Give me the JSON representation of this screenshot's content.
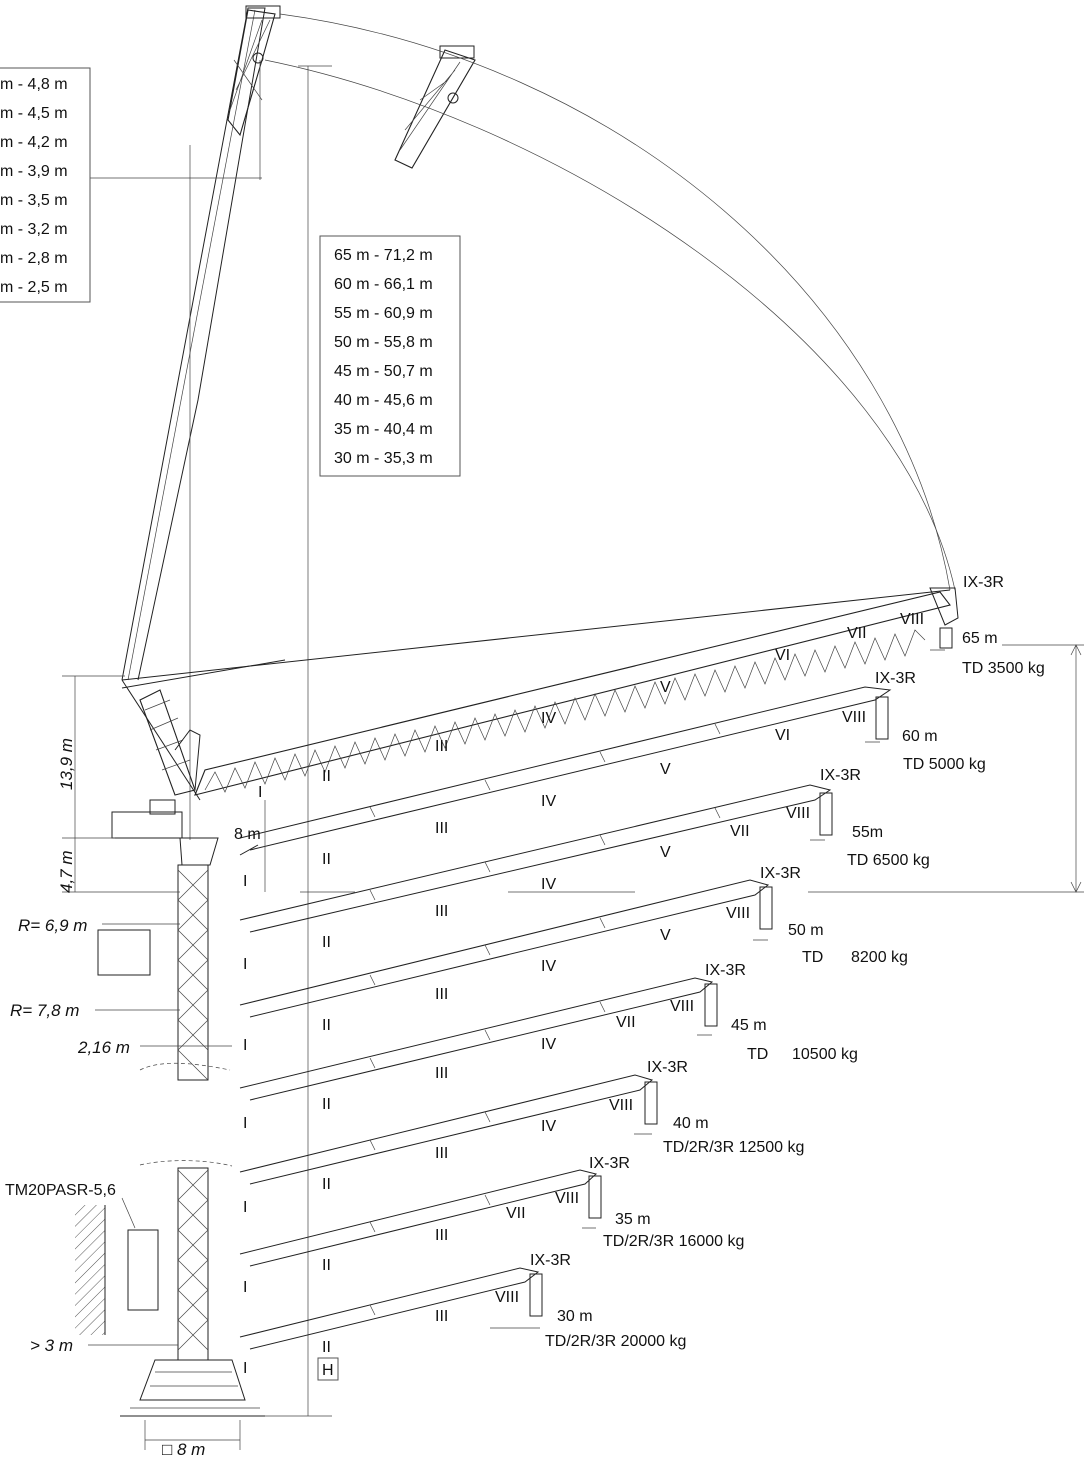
{
  "left_table": [
    "m - 4,8 m",
    "m - 4,5 m",
    "m - 4,2 m",
    "m - 3,9 m",
    "m - 3,5 m",
    "m - 3,2 m",
    "m - 2,8 m",
    "m - 2,5 m"
  ],
  "center_table": [
    "65 m - 71,2 m",
    "60 m - 66,1 m",
    "55 m - 60,9 m",
    "50 m - 55,8 m",
    "45 m - 50,7 m",
    "40 m - 45,6 m",
    "35 m - 40,4 m",
    "30 m - 35,3 m"
  ],
  "dimensions": {
    "d13_9": "13,9 m",
    "d4_7": "4,7 m",
    "d8": "8 m",
    "r69": "R= 6,9 m",
    "r78": "R= 7,8 m",
    "d216": "2,16 m",
    "gt3": "> 3 m",
    "base": "□ 8 m",
    "h": "H"
  },
  "tie_label": "TM20PASR-5,6",
  "section_label": "IX-3R",
  "roman": [
    "I",
    "II",
    "III",
    "IV",
    "V",
    "VI",
    "VII",
    "VIII"
  ],
  "configs": [
    {
      "jib": "65 m",
      "cap": "TD 3500 kg"
    },
    {
      "jib": "60 m",
      "cap": "TD   5000 kg"
    },
    {
      "jib": "55m",
      "cap": "TD  6500 kg"
    },
    {
      "jib": "50 m",
      "td": "TD",
      "cap": "8200 kg"
    },
    {
      "jib": "45 m",
      "td": "TD",
      "cap": "10500 kg"
    },
    {
      "jib": "40 m",
      "cap": "TD/2R/3R   12500 kg"
    },
    {
      "jib": "35 m",
      "cap": "TD/2R/3R  16000 kg"
    },
    {
      "jib": "30 m",
      "cap": "TD/2R/3R  20000 kg"
    }
  ]
}
